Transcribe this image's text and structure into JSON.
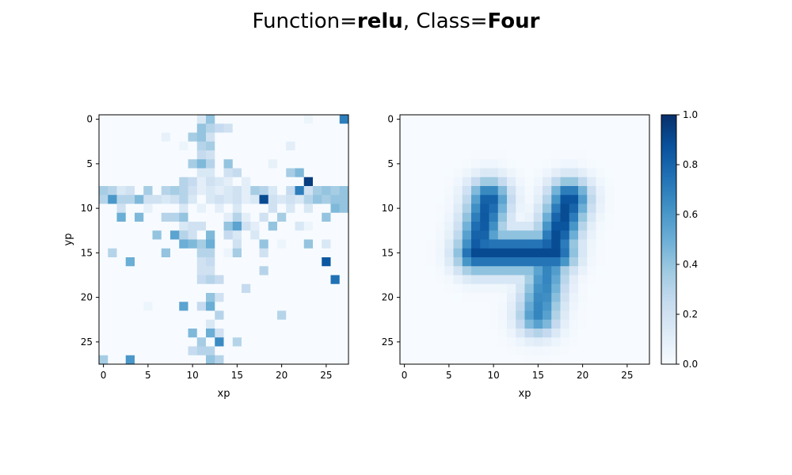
{
  "title": {
    "prefix": "Function=",
    "function": "relu",
    "separator": ", Class=",
    "class_name": "Four"
  },
  "chart_data": [
    {
      "type": "heatmap",
      "colormap": "Blues",
      "xlabel": "xp",
      "ylabel": "yp",
      "xlim": [
        -0.5,
        27.5
      ],
      "ylim": [
        27.5,
        -0.5
      ],
      "xticks": [
        0,
        5,
        10,
        15,
        20,
        25
      ],
      "yticks": [
        0,
        5,
        10,
        15,
        20,
        25
      ],
      "grid": false,
      "note": "sparse cells estimated; unlisted cells ~0",
      "cells": [
        [
          0,
          11,
          0.15
        ],
        [
          0,
          12,
          0.4
        ],
        [
          0,
          23,
          0.05
        ],
        [
          0,
          27,
          0.7
        ],
        [
          1,
          11,
          0.4
        ],
        [
          1,
          12,
          0.3
        ],
        [
          1,
          13,
          0.25
        ],
        [
          1,
          14,
          0.2
        ],
        [
          2,
          7,
          0.08
        ],
        [
          2,
          10,
          0.35
        ],
        [
          2,
          11,
          0.4
        ],
        [
          2,
          12,
          0.2
        ],
        [
          3,
          9,
          0.05
        ],
        [
          3,
          11,
          0.3
        ],
        [
          3,
          12,
          0.35
        ],
        [
          3,
          21,
          0.1
        ],
        [
          4,
          11,
          0.25
        ],
        [
          4,
          12,
          0.2
        ],
        [
          5,
          10,
          0.35
        ],
        [
          5,
          11,
          0.45
        ],
        [
          5,
          12,
          0.3
        ],
        [
          5,
          14,
          0.4
        ],
        [
          5,
          19,
          0.08
        ],
        [
          6,
          11,
          0.15
        ],
        [
          6,
          12,
          0.15
        ],
        [
          6,
          14,
          0.2
        ],
        [
          6,
          15,
          0.25
        ],
        [
          6,
          21,
          0.35
        ],
        [
          6,
          22,
          0.45
        ],
        [
          7,
          9,
          0.3
        ],
        [
          7,
          10,
          0.25
        ],
        [
          7,
          11,
          0.1
        ],
        [
          7,
          12,
          0.2
        ],
        [
          7,
          13,
          0.15
        ],
        [
          7,
          14,
          0.1
        ],
        [
          7,
          16,
          0.1
        ],
        [
          7,
          23,
          0.95
        ],
        [
          8,
          0,
          0.35
        ],
        [
          8,
          1,
          0.3
        ],
        [
          8,
          2,
          0.15
        ],
        [
          8,
          3,
          0.2
        ],
        [
          8,
          5,
          0.35
        ],
        [
          8,
          7,
          0.3
        ],
        [
          8,
          8,
          0.35
        ],
        [
          8,
          9,
          0.3
        ],
        [
          8,
          10,
          0.2
        ],
        [
          8,
          11,
          0.1
        ],
        [
          8,
          12,
          0.15
        ],
        [
          8,
          13,
          0.1
        ],
        [
          8,
          14,
          0.15
        ],
        [
          8,
          15,
          0.2
        ],
        [
          8,
          16,
          0.1
        ],
        [
          8,
          17,
          0.35
        ],
        [
          8,
          18,
          0.3
        ],
        [
          8,
          19,
          0.15
        ],
        [
          8,
          21,
          0.25
        ],
        [
          8,
          22,
          0.7
        ],
        [
          8,
          23,
          0.2
        ],
        [
          8,
          24,
          0.35
        ],
        [
          8,
          25,
          0.4
        ],
        [
          8,
          26,
          0.35
        ],
        [
          8,
          27,
          0.4
        ],
        [
          9,
          0,
          0.3
        ],
        [
          9,
          1,
          0.6
        ],
        [
          9,
          2,
          0.3
        ],
        [
          9,
          3,
          0.3
        ],
        [
          9,
          4,
          0.45
        ],
        [
          9,
          5,
          0.2
        ],
        [
          9,
          6,
          0.2
        ],
        [
          9,
          7,
          0.15
        ],
        [
          9,
          8,
          0.2
        ],
        [
          9,
          9,
          0.3
        ],
        [
          9,
          10,
          0.15
        ],
        [
          9,
          12,
          0.15
        ],
        [
          9,
          13,
          0.2
        ],
        [
          9,
          14,
          0.15
        ],
        [
          9,
          15,
          0.2
        ],
        [
          9,
          16,
          0.1
        ],
        [
          9,
          17,
          0.15
        ],
        [
          9,
          18,
          0.9
        ],
        [
          9,
          19,
          0.2
        ],
        [
          9,
          20,
          0.15
        ],
        [
          9,
          21,
          0.2
        ],
        [
          9,
          22,
          0.15
        ],
        [
          9,
          23,
          0.3
        ],
        [
          9,
          24,
          0.4
        ],
        [
          9,
          25,
          0.35
        ],
        [
          9,
          26,
          0.4
        ],
        [
          9,
          27,
          0.4
        ],
        [
          10,
          2,
          0.2
        ],
        [
          10,
          5,
          0.08
        ],
        [
          10,
          9,
          0.15
        ],
        [
          10,
          11,
          0.08
        ],
        [
          10,
          13,
          0.1
        ],
        [
          10,
          15,
          0.15
        ],
        [
          10,
          19,
          0.2
        ],
        [
          10,
          21,
          0.15
        ],
        [
          10,
          23,
          0.15
        ],
        [
          10,
          26,
          0.45
        ],
        [
          10,
          27,
          0.4
        ],
        [
          11,
          2,
          0.5
        ],
        [
          11,
          4,
          0.45
        ],
        [
          11,
          7,
          0.3
        ],
        [
          11,
          8,
          0.3
        ],
        [
          11,
          9,
          0.4
        ],
        [
          11,
          14,
          0.1
        ],
        [
          11,
          15,
          0.3
        ],
        [
          11,
          16,
          0.1
        ],
        [
          11,
          18,
          0.2
        ],
        [
          11,
          20,
          0.35
        ],
        [
          11,
          25,
          0.4
        ],
        [
          12,
          9,
          0.15
        ],
        [
          12,
          10,
          0.2
        ],
        [
          12,
          11,
          0.2
        ],
        [
          12,
          14,
          0.4
        ],
        [
          12,
          15,
          0.55
        ],
        [
          12,
          16,
          0.2
        ],
        [
          12,
          17,
          0.1
        ],
        [
          12,
          19,
          0.4
        ],
        [
          12,
          22,
          0.15
        ],
        [
          12,
          23,
          0.05
        ],
        [
          13,
          6,
          0.4
        ],
        [
          13,
          8,
          0.55
        ],
        [
          13,
          9,
          0.3
        ],
        [
          13,
          10,
          0.2
        ],
        [
          13,
          12,
          0.45
        ],
        [
          13,
          14,
          0.25
        ],
        [
          13,
          15,
          0.15
        ],
        [
          13,
          17,
          0.15
        ],
        [
          14,
          9,
          0.5
        ],
        [
          14,
          10,
          0.45
        ],
        [
          14,
          11,
          0.35
        ],
        [
          14,
          12,
          0.5
        ],
        [
          14,
          15,
          0.2
        ],
        [
          14,
          18,
          0.4
        ],
        [
          14,
          20,
          0.05
        ],
        [
          14,
          23,
          0.4
        ],
        [
          14,
          25,
          0.15
        ],
        [
          15,
          1,
          0.3
        ],
        [
          15,
          7,
          0.4
        ],
        [
          15,
          11,
          0.3
        ],
        [
          15,
          12,
          0.3
        ],
        [
          15,
          14,
          0.05
        ],
        [
          15,
          15,
          0.35
        ],
        [
          15,
          18,
          0.2
        ],
        [
          16,
          3,
          0.5
        ],
        [
          16,
          11,
          0.2
        ],
        [
          16,
          12,
          0.25
        ],
        [
          16,
          25,
          0.85
        ],
        [
          17,
          11,
          0.2
        ],
        [
          17,
          12,
          0.2
        ],
        [
          17,
          18,
          0.3
        ],
        [
          18,
          11,
          0.25
        ],
        [
          18,
          12,
          0.3
        ],
        [
          18,
          13,
          0.25
        ],
        [
          18,
          26,
          0.75
        ],
        [
          19,
          16,
          0.25
        ],
        [
          20,
          12,
          0.4
        ],
        [
          20,
          13,
          0.2
        ],
        [
          21,
          5,
          0.05
        ],
        [
          21,
          9,
          0.55
        ],
        [
          21,
          11,
          0.25
        ],
        [
          21,
          12,
          0.5
        ],
        [
          22,
          13,
          0.3
        ],
        [
          22,
          20,
          0.3
        ],
        [
          23,
          12,
          0.15
        ],
        [
          24,
          10,
          0.45
        ],
        [
          24,
          12,
          0.5
        ],
        [
          24,
          13,
          0.2
        ],
        [
          25,
          11,
          0.35
        ],
        [
          25,
          13,
          0.65
        ],
        [
          25,
          15,
          0.3
        ],
        [
          26,
          10,
          0.25
        ],
        [
          26,
          11,
          0.3
        ],
        [
          26,
          12,
          0.3
        ],
        [
          27,
          0,
          0.35
        ],
        [
          27,
          3,
          0.6
        ],
        [
          27,
          12,
          0.4
        ],
        [
          27,
          13,
          0.3
        ]
      ]
    },
    {
      "type": "heatmap",
      "colormap": "Blues",
      "xlabel": "xp",
      "ylabel": "",
      "xlim": [
        -0.5,
        27.5
      ],
      "ylim": [
        27.5,
        -0.5
      ],
      "xticks": [
        0,
        5,
        10,
        15,
        20,
        25
      ],
      "yticks": [
        0,
        5,
        10,
        15,
        20,
        25
      ],
      "grid": false,
      "note": "smooth blurred digit four; values estimated",
      "strokes": [
        {
          "from": [
            9,
            9.5
          ],
          "to": [
            15,
            8
          ],
          "peak": 0.75
        },
        {
          "from": [
            9,
            18.5
          ],
          "to": [
            15,
            16.5
          ],
          "peak": 0.8
        },
        {
          "from": [
            15,
            8
          ],
          "to": [
            15,
            17
          ],
          "peak": 0.8
        },
        {
          "from": [
            15,
            16.5
          ],
          "to": [
            22,
            15
          ],
          "peak": 0.6
        }
      ],
      "blur_sigma": 1.6,
      "max_value": 0.9
    }
  ],
  "colorbar": {
    "min": 0.0,
    "max": 1.0,
    "ticks": [
      "0.0",
      "0.2",
      "0.4",
      "0.6",
      "0.8",
      "1.0"
    ],
    "colormap": "Blues"
  }
}
